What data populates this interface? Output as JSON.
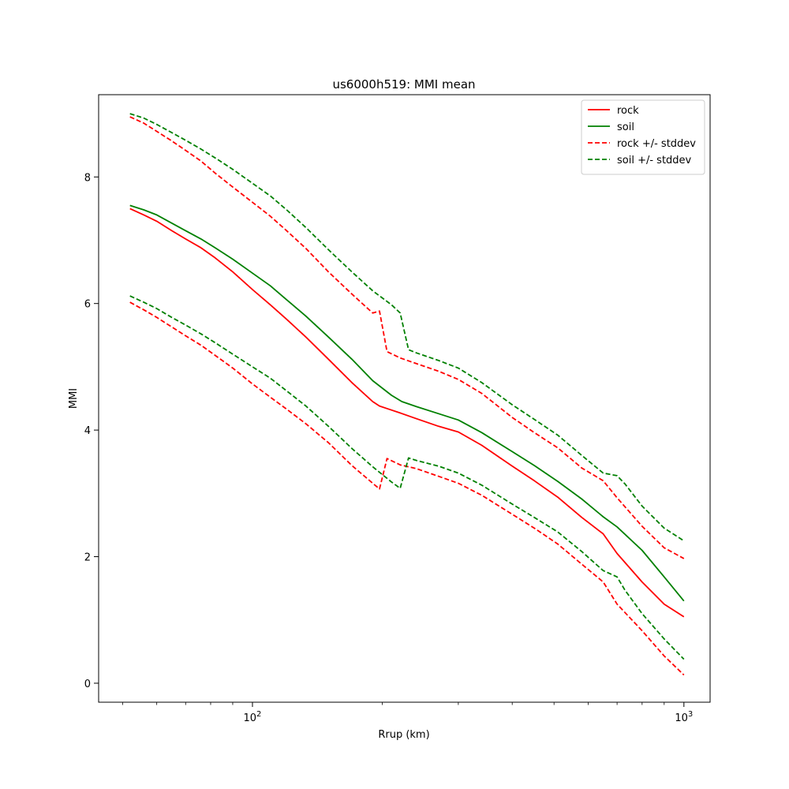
{
  "chart_data": {
    "type": "line",
    "title": "us6000h519: MMI mean",
    "xlabel": "Rrup (km)",
    "ylabel": "MMI",
    "xscale": "log",
    "xlim": [
      44,
      1150
    ],
    "ylim": [
      -0.3,
      9.3
    ],
    "xticks": [
      {
        "value": 100,
        "base": "10",
        "exp": "2"
      },
      {
        "value": 1000,
        "base": "10",
        "exp": "3"
      }
    ],
    "yticks": [
      0,
      2,
      4,
      6,
      8
    ],
    "grid": false,
    "legend_position": "top-right",
    "series": [
      {
        "name": "rock",
        "color": "#ff0000",
        "style": "solid",
        "x": [
          52,
          56,
          60,
          65,
          70,
          76,
          82,
          90,
          100,
          110,
          120,
          133,
          150,
          170,
          190,
          197,
          205,
          220,
          240,
          270,
          300,
          340,
          400,
          450,
          510,
          580,
          650,
          700,
          800,
          900,
          1000
        ],
        "y": [
          7.5,
          7.4,
          7.3,
          7.15,
          7.02,
          6.88,
          6.72,
          6.5,
          6.22,
          5.98,
          5.75,
          5.47,
          5.12,
          4.75,
          4.45,
          4.38,
          4.34,
          4.27,
          4.18,
          4.06,
          3.97,
          3.76,
          3.43,
          3.2,
          2.94,
          2.62,
          2.36,
          2.05,
          1.6,
          1.25,
          1.05
        ]
      },
      {
        "name": "soil",
        "color": "#008000",
        "style": "solid",
        "x": [
          52,
          56,
          60,
          65,
          70,
          76,
          82,
          90,
          100,
          110,
          120,
          133,
          150,
          170,
          190,
          210,
          222,
          240,
          270,
          300,
          340,
          400,
          450,
          510,
          580,
          650,
          700,
          800,
          900,
          1000
        ],
        "y": [
          7.55,
          7.48,
          7.4,
          7.27,
          7.15,
          7.02,
          6.88,
          6.7,
          6.48,
          6.28,
          6.06,
          5.8,
          5.47,
          5.12,
          4.78,
          4.55,
          4.45,
          4.37,
          4.26,
          4.16,
          3.96,
          3.66,
          3.44,
          3.19,
          2.91,
          2.63,
          2.47,
          2.1,
          1.68,
          1.3
        ]
      },
      {
        "name": "rock +/- stddev",
        "color": "#ff0000",
        "style": "dashed",
        "x": [
          52,
          56,
          60,
          65,
          70,
          76,
          82,
          90,
          100,
          110,
          120,
          133,
          150,
          170,
          190,
          197,
          205,
          220,
          240,
          270,
          300,
          340,
          400,
          450,
          510,
          580,
          650,
          700,
          800,
          900,
          1000
        ],
        "y": [
          8.95,
          8.85,
          8.72,
          8.57,
          8.42,
          8.25,
          8.06,
          7.84,
          7.6,
          7.38,
          7.15,
          6.87,
          6.5,
          6.15,
          5.85,
          5.88,
          5.24,
          5.14,
          5.05,
          4.93,
          4.8,
          4.58,
          4.2,
          3.96,
          3.72,
          3.4,
          3.2,
          2.93,
          2.48,
          2.14,
          1.97
        ]
      },
      {
        "name": "rock +/- stddev",
        "color": "#ff0000",
        "style": "dashed",
        "x": [
          52,
          56,
          60,
          65,
          70,
          76,
          82,
          90,
          100,
          110,
          120,
          133,
          150,
          170,
          190,
          197,
          205,
          220,
          240,
          270,
          300,
          340,
          400,
          450,
          510,
          580,
          650,
          700,
          800,
          900,
          1000
        ],
        "y": [
          6.02,
          5.9,
          5.78,
          5.63,
          5.49,
          5.34,
          5.18,
          4.98,
          4.73,
          4.52,
          4.33,
          4.1,
          3.8,
          3.44,
          3.16,
          3.07,
          3.55,
          3.45,
          3.39,
          3.27,
          3.16,
          2.97,
          2.67,
          2.45,
          2.2,
          1.88,
          1.6,
          1.25,
          0.83,
          0.43,
          0.13
        ]
      },
      {
        "name": "soil +/- stddev",
        "color": "#008000",
        "style": "dashed",
        "x": [
          52,
          56,
          60,
          65,
          70,
          76,
          82,
          90,
          100,
          110,
          120,
          133,
          150,
          170,
          190,
          210,
          220,
          230,
          240,
          270,
          300,
          340,
          400,
          450,
          510,
          580,
          650,
          700,
          730,
          800,
          900,
          1000
        ],
        "y": [
          9.0,
          8.93,
          8.83,
          8.7,
          8.58,
          8.44,
          8.3,
          8.12,
          7.9,
          7.7,
          7.48,
          7.2,
          6.85,
          6.5,
          6.2,
          5.98,
          5.85,
          5.27,
          5.22,
          5.1,
          4.98,
          4.75,
          4.4,
          4.17,
          3.92,
          3.6,
          3.32,
          3.28,
          3.15,
          2.8,
          2.45,
          2.25
        ]
      },
      {
        "name": "soil +/- stddev",
        "color": "#008000",
        "style": "dashed",
        "x": [
          52,
          56,
          60,
          65,
          70,
          76,
          82,
          90,
          100,
          110,
          120,
          133,
          150,
          170,
          190,
          210,
          220,
          230,
          240,
          270,
          300,
          340,
          400,
          450,
          510,
          580,
          650,
          700,
          730,
          800,
          900,
          1000
        ],
        "y": [
          6.12,
          6.02,
          5.92,
          5.78,
          5.66,
          5.52,
          5.38,
          5.2,
          5.0,
          4.82,
          4.62,
          4.38,
          4.06,
          3.71,
          3.42,
          3.18,
          3.08,
          3.56,
          3.52,
          3.43,
          3.32,
          3.13,
          2.83,
          2.62,
          2.39,
          2.08,
          1.78,
          1.68,
          1.47,
          1.1,
          0.7,
          0.38
        ]
      }
    ],
    "legend": [
      {
        "label": "rock",
        "color": "#ff0000",
        "style": "solid"
      },
      {
        "label": "soil",
        "color": "#008000",
        "style": "solid"
      },
      {
        "label": "rock +/- stddev",
        "color": "#ff0000",
        "style": "dashed"
      },
      {
        "label": "soil +/- stddev",
        "color": "#008000",
        "style": "dashed"
      }
    ]
  }
}
